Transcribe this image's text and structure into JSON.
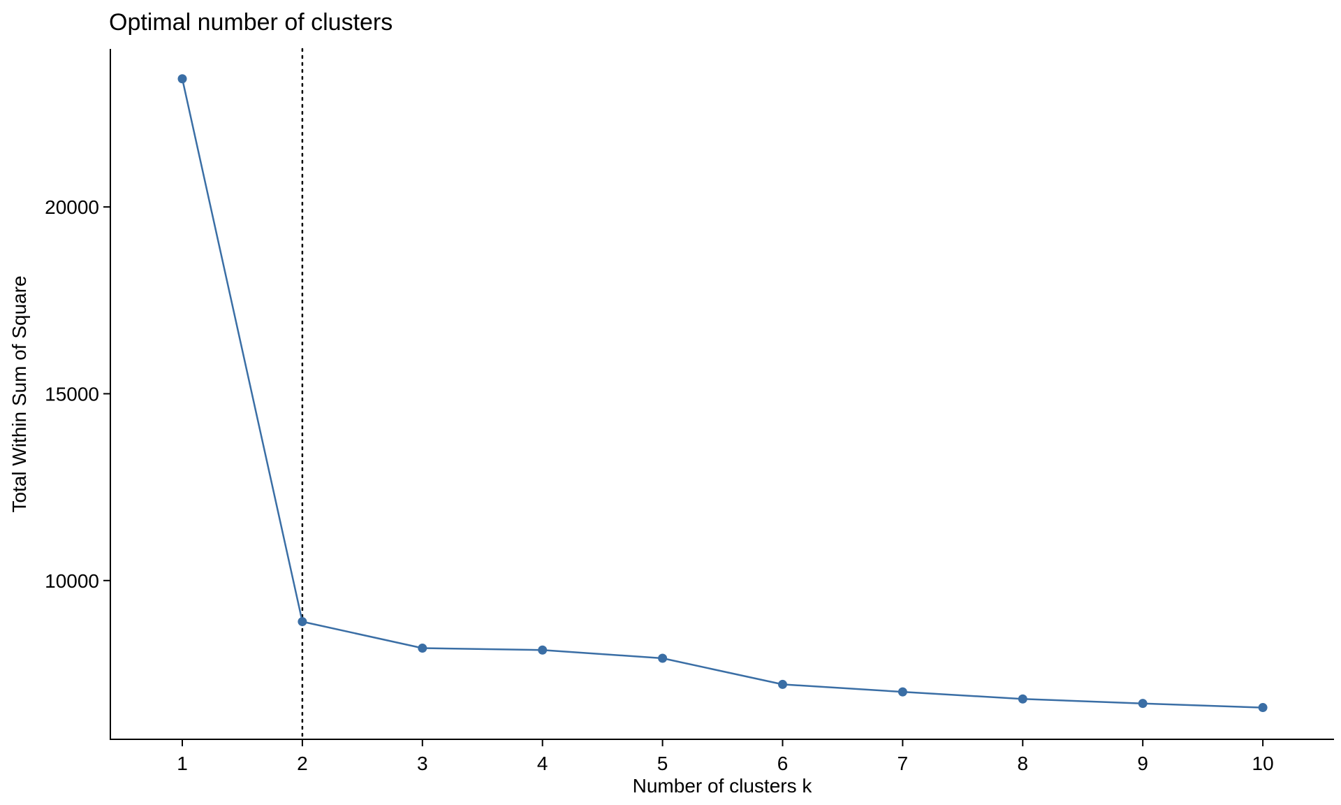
{
  "chart_data": {
    "type": "line",
    "title": "Optimal number of clusters",
    "xlabel": "Number of clusters k",
    "ylabel": "Total Within Sum of Square",
    "x": [
      "1",
      "2",
      "3",
      "4",
      "5",
      "6",
      "7",
      "8",
      "9",
      "10"
    ],
    "series": [
      {
        "values": [
          23430,
          8900,
          8190,
          8140,
          7920,
          7220,
          7020,
          6830,
          6710,
          6600
        ]
      }
    ],
    "y_ticks": [
      "10000",
      "15000",
      "20000"
    ],
    "ylim": [
      5750,
      24230
    ],
    "optimal_k": 2,
    "grid": false,
    "legend": "none",
    "colors": {
      "series": "#3a6ea5",
      "axis": "#000000",
      "reference_line": "#000000"
    }
  }
}
